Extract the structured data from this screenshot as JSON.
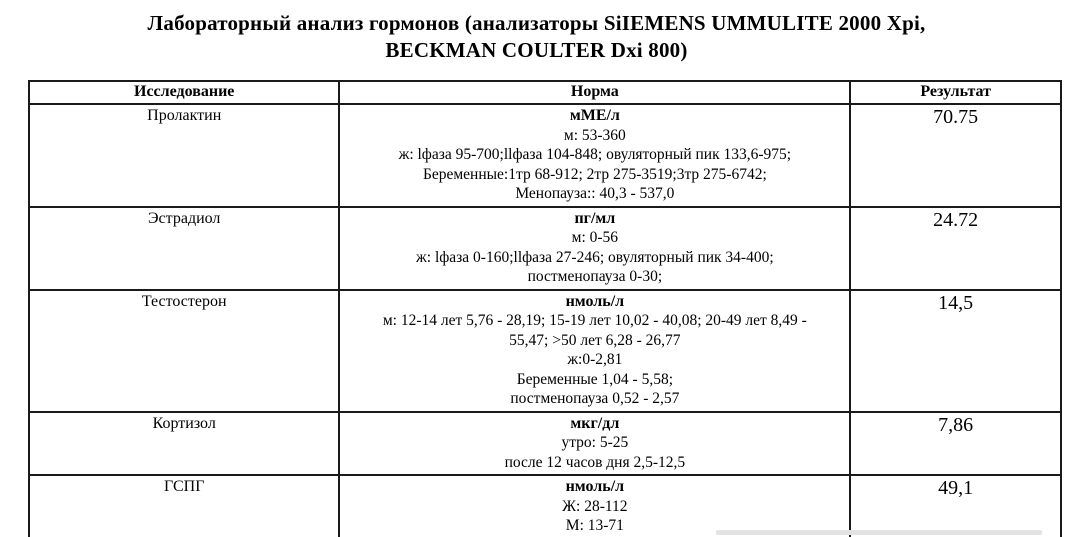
{
  "title": {
    "line1": "Лабораторный анализ гормонов (анализаторы SiIEMENS UMMULITE 2000 Xpi,",
    "line2": "BECKMAN COULTER Dxi 800)"
  },
  "table": {
    "headers": [
      "Исследование",
      "Норма",
      "Результат"
    ],
    "rows": [
      {
        "test": "Пролактин",
        "unit": "мМЕ/л",
        "norm_lines": [
          "м: 53-360",
          "ж: lфаза 95-700;llфаза 104-848; овуляторный пик 133,6-975;",
          "Беременные:1тр 68-912; 2тр 275-3519;3тр 275-6742;",
          "Менопауза:: 40,3 - 537,0"
        ],
        "result": "70.75"
      },
      {
        "test": "Эстрадиол",
        "unit": "пг/мл",
        "norm_lines": [
          "м: 0-56",
          "ж: lфаза 0-160;llфаза 27-246; овуляторный пик 34-400;",
          "постменопауза 0-30;"
        ],
        "result": "24.72"
      },
      {
        "test": "Тестостерон",
        "unit": "нмоль/л",
        "norm_lines": [
          "м: 12-14 лет 5,76 - 28,19; 15-19 лет 10,02 - 40,08; 20-49 лет 8,49 -",
          "55,47; >50 лет 6,28 - 26,77",
          "ж:0-2,81",
          "Беременные 1,04 - 5,58;",
          "постменопауза 0,52 - 2,57"
        ],
        "result": "14,5"
      },
      {
        "test": "Кортизол",
        "unit": "мкг/дл",
        "norm_lines": [
          "утро: 5-25",
          "после 12 часов дня 2,5-12,5"
        ],
        "result": "7,86"
      },
      {
        "test": "ГСПГ",
        "unit": "нмоль/л",
        "norm_lines": [
          "Ж: 28-112",
          "М: 13-71"
        ],
        "result": "49,1"
      }
    ]
  },
  "colors": {
    "background": "#ffffff",
    "text": "#000000",
    "table_border": "#1a1a1a",
    "bottom_bar": "#e3e3e3"
  }
}
